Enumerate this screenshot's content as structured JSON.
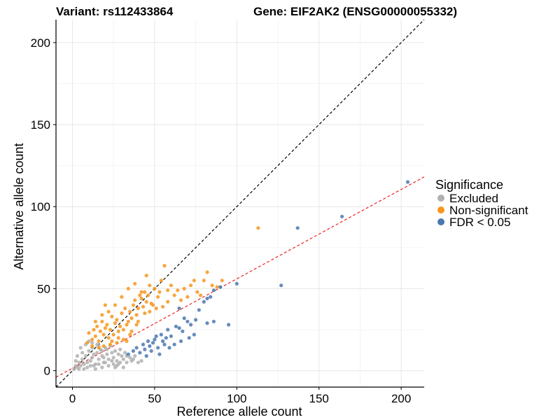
{
  "chart_data": {
    "type": "scatter",
    "title_left": "Variant: rs112433864",
    "title_right": "Gene: EIF2AK2 (ENSG00000055332)",
    "xlabel": "Reference allele count",
    "ylabel": "Alternative allele count",
    "xlim": [
      -10,
      214
    ],
    "ylim": [
      -10,
      214
    ],
    "x_ticks": [
      0,
      50,
      100,
      150,
      200
    ],
    "y_ticks": [
      0,
      50,
      100,
      150,
      200
    ],
    "grid": true,
    "reference_lines": [
      {
        "name": "identity",
        "slope": 1,
        "intercept": 0,
        "color": "#000000",
        "dashed": true
      },
      {
        "name": "fit",
        "slope": 0.545,
        "intercept": 1.5,
        "color": "#ee2222",
        "dashed": true
      }
    ],
    "legend": {
      "title": "Significance",
      "placement": "right",
      "entries": [
        {
          "label": "Excluded",
          "color": "#b0b0b0"
        },
        {
          "label": "Non-significant",
          "color": "#f6961e"
        },
        {
          "label": "FDR < 0.05",
          "color": "#4a78b0"
        }
      ]
    },
    "series": [
      {
        "name": "Excluded",
        "color": "#b0b0b0",
        "points": [
          [
            1,
            1
          ],
          [
            2,
            3
          ],
          [
            3,
            2
          ],
          [
            4,
            5
          ],
          [
            5,
            3
          ],
          [
            6,
            7
          ],
          [
            7,
            4
          ],
          [
            8,
            9
          ],
          [
            9,
            5
          ],
          [
            10,
            12
          ],
          [
            11,
            6
          ],
          [
            12,
            8
          ],
          [
            13,
            10
          ],
          [
            14,
            4
          ],
          [
            15,
            11
          ],
          [
            16,
            7
          ],
          [
            17,
            13
          ],
          [
            18,
            9
          ],
          [
            19,
            5
          ],
          [
            20,
            14
          ],
          [
            21,
            10
          ],
          [
            22,
            7
          ],
          [
            23,
            15
          ],
          [
            24,
            11
          ],
          [
            25,
            8
          ],
          [
            26,
            12
          ],
          [
            27,
            6
          ],
          [
            28,
            10
          ],
          [
            29,
            13
          ],
          [
            30,
            9
          ],
          [
            31,
            7
          ],
          [
            32,
            11
          ],
          [
            33,
            5
          ],
          [
            35,
            8
          ],
          [
            36,
            6
          ],
          [
            38,
            9
          ],
          [
            40,
            5
          ],
          [
            6,
            11
          ],
          [
            8,
            16
          ],
          [
            10,
            18
          ],
          [
            12,
            17
          ],
          [
            5,
            14
          ],
          [
            9,
            2
          ],
          [
            14,
            1
          ],
          [
            18,
            2
          ],
          [
            22,
            3
          ],
          [
            27,
            3
          ],
          [
            31,
            2
          ],
          [
            4,
            1
          ],
          [
            7,
            1
          ],
          [
            11,
            3
          ],
          [
            16,
            4
          ],
          [
            20,
            5
          ],
          [
            25,
            4
          ],
          [
            29,
            5
          ],
          [
            3,
            9
          ],
          [
            12,
            14
          ],
          [
            15,
            16
          ],
          [
            18,
            12
          ],
          [
            24,
            6
          ],
          [
            28,
            4
          ],
          [
            33,
            9
          ],
          [
            37,
            7
          ],
          [
            42,
            6
          ],
          [
            2,
            6
          ],
          [
            13,
            3
          ],
          [
            19,
            8
          ],
          [
            26,
            2
          ],
          [
            16,
            15
          ],
          [
            21,
            13
          ]
        ]
      },
      {
        "name": "Non-significant",
        "color": "#f6961e",
        "points": [
          [
            10,
            23
          ],
          [
            12,
            19
          ],
          [
            13,
            25
          ],
          [
            14,
            21
          ],
          [
            15,
            27
          ],
          [
            16,
            18
          ],
          [
            17,
            24
          ],
          [
            18,
            30
          ],
          [
            19,
            22
          ],
          [
            20,
            26
          ],
          [
            21,
            28
          ],
          [
            22,
            20
          ],
          [
            23,
            25
          ],
          [
            24,
            33
          ],
          [
            25,
            22
          ],
          [
            26,
            29
          ],
          [
            27,
            31
          ],
          [
            28,
            24
          ],
          [
            29,
            27
          ],
          [
            30,
            35
          ],
          [
            31,
            25
          ],
          [
            32,
            38
          ],
          [
            33,
            28
          ],
          [
            34,
            30
          ],
          [
            35,
            36
          ],
          [
            36,
            32
          ],
          [
            37,
            40
          ],
          [
            38,
            43
          ],
          [
            39,
            34
          ],
          [
            40,
            38
          ],
          [
            41,
            46
          ],
          [
            42,
            44
          ],
          [
            43,
            39
          ],
          [
            44,
            48
          ],
          [
            45,
            42
          ],
          [
            46,
            46
          ],
          [
            47,
            52
          ],
          [
            48,
            41
          ],
          [
            50,
            50
          ],
          [
            52,
            45
          ],
          [
            54,
            55
          ],
          [
            56,
            64
          ],
          [
            58,
            49
          ],
          [
            60,
            52
          ],
          [
            62,
            46
          ],
          [
            64,
            49
          ],
          [
            66,
            43
          ],
          [
            68,
            50
          ],
          [
            70,
            45
          ],
          [
            72,
            52
          ],
          [
            74,
            55
          ],
          [
            76,
            48
          ],
          [
            78,
            46
          ],
          [
            80,
            55
          ],
          [
            82,
            60
          ],
          [
            85,
            52
          ],
          [
            88,
            51
          ],
          [
            91,
            55
          ],
          [
            113,
            87
          ],
          [
            30,
            45
          ],
          [
            34,
            50
          ],
          [
            38,
            53
          ],
          [
            42,
            48
          ],
          [
            26,
            40
          ],
          [
            22,
            36
          ],
          [
            18,
            34
          ],
          [
            14,
            30
          ],
          [
            20,
            40
          ],
          [
            45,
            58
          ],
          [
            53,
            48
          ],
          [
            58,
            42
          ],
          [
            44,
            35
          ],
          [
            49,
            40
          ],
          [
            40,
            30
          ],
          [
            35,
            22
          ],
          [
            31,
            19
          ],
          [
            27,
            17
          ],
          [
            23,
            16
          ],
          [
            19,
            15
          ],
          [
            16,
            14
          ],
          [
            12,
            15
          ],
          [
            9,
            17
          ],
          [
            24,
            18
          ],
          [
            28,
            20
          ],
          [
            33,
            18
          ],
          [
            36,
            24
          ],
          [
            39,
            28
          ],
          [
            47,
            36
          ],
          [
            51,
            38
          ],
          [
            55,
            39
          ]
        ]
      },
      {
        "name": "FDR < 0.05",
        "color": "#4a78b0",
        "points": [
          [
            34,
            10
          ],
          [
            37,
            12
          ],
          [
            39,
            14
          ],
          [
            41,
            11
          ],
          [
            43,
            16
          ],
          [
            44,
            13
          ],
          [
            46,
            18
          ],
          [
            47,
            15
          ],
          [
            49,
            17
          ],
          [
            50,
            19
          ],
          [
            52,
            14
          ],
          [
            54,
            22
          ],
          [
            55,
            18
          ],
          [
            57,
            20
          ],
          [
            58,
            25
          ],
          [
            60,
            21
          ],
          [
            62,
            16
          ],
          [
            63,
            27
          ],
          [
            65,
            26
          ],
          [
            67,
            24
          ],
          [
            70,
            30
          ],
          [
            72,
            28
          ],
          [
            75,
            31
          ],
          [
            77,
            37
          ],
          [
            80,
            42
          ],
          [
            82,
            44
          ],
          [
            84,
            45
          ],
          [
            86,
            49
          ],
          [
            90,
            51
          ],
          [
            100,
            53
          ],
          [
            127,
            52
          ],
          [
            137,
            87
          ],
          [
            164,
            94
          ],
          [
            204,
            115
          ],
          [
            65,
            38
          ],
          [
            68,
            32
          ],
          [
            74,
            22
          ],
          [
            82,
            29
          ],
          [
            86,
            30
          ],
          [
            95,
            28
          ],
          [
            48,
            12
          ],
          [
            53,
            10
          ],
          [
            59,
            14
          ],
          [
            66,
            18
          ],
          [
            71,
            20
          ],
          [
            45,
            9
          ],
          [
            51,
            21
          ],
          [
            56,
            16
          ]
        ]
      }
    ]
  }
}
